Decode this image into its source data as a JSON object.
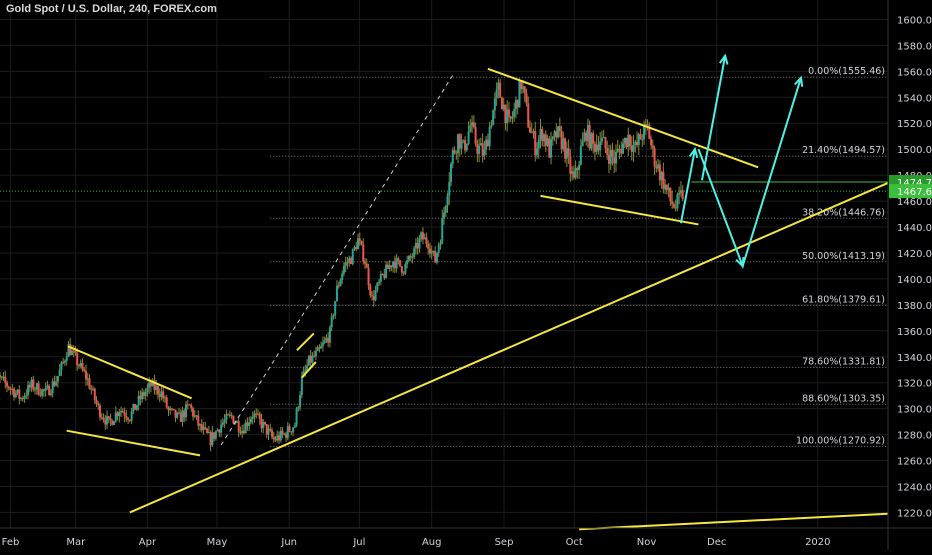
{
  "header": {
    "title": "Gold Spot / U.S. Dollar, 240, FOREX.com"
  },
  "colors": {
    "background": "#000000",
    "grid": "#1c1c1c",
    "candle_up": "#26a69a",
    "candle_down": "#ef5350",
    "wick": "#8a8a3a",
    "pattern_line": "#f5e642",
    "projection": "#4ff0e6",
    "fib_line": "#888888",
    "price_line": "#3cc03c",
    "price_badge": "#3cc03c",
    "price_badge_alt": "#2a9a2a",
    "axis_text": "#d1d4dc"
  },
  "chart_data": {
    "type": "candlestick",
    "symbol": "Gold Spot / U.S. Dollar",
    "interval": "240",
    "ylim": [
      1208,
      1615
    ],
    "y_ticks": [
      1220,
      1240,
      1260,
      1280,
      1300,
      1320,
      1340,
      1360,
      1380,
      1400,
      1420,
      1440,
      1460,
      1480,
      1500,
      1520,
      1540,
      1560,
      1580,
      1600
    ],
    "y_tick_labels": [
      "1220.00",
      "1240.00",
      "1260.00",
      "1280.00",
      "1300.00",
      "1320.00",
      "1340.00",
      "1360.00",
      "1380.00",
      "1400.00",
      "1420.00",
      "1440.00",
      "1460.00",
      "1480.00",
      "1500.00",
      "1520.00",
      "1540.00",
      "1560.00",
      "1580.00",
      "1600.00"
    ],
    "x_ticks": [
      {
        "label": "Feb",
        "t": 0.3
      },
      {
        "label": "Mar",
        "t": 1.23
      },
      {
        "label": "Apr",
        "t": 2.25
      },
      {
        "label": "May",
        "t": 3.24
      },
      {
        "label": "Jun",
        "t": 4.27
      },
      {
        "label": "Jul",
        "t": 5.27
      },
      {
        "label": "Aug",
        "t": 6.3
      },
      {
        "label": "Sep",
        "t": 7.33
      },
      {
        "label": "Oct",
        "t": 8.33
      },
      {
        "label": "Nov",
        "t": 9.36
      },
      {
        "label": "Dec",
        "t": 10.36
      },
      {
        "label": "2020",
        "t": 11.8
      }
    ],
    "xlim": [
      0.15,
      12.8
    ],
    "current_price": {
      "value": 1467.69,
      "label": "1467.69"
    },
    "secondary_price": {
      "value": 1474.75,
      "label": "1474.75"
    },
    "fib_levels": [
      {
        "label": "0.00%(1555.46)",
        "value": 1555.46
      },
      {
        "label": "21.40%(1494.57)",
        "value": 1494.57
      },
      {
        "label": "38.20%(1446.76)",
        "value": 1446.76
      },
      {
        "label": "50.00%(1413.19)",
        "value": 1413.19
      },
      {
        "label": "61.80%(1379.61)",
        "value": 1379.61
      },
      {
        "label": "78.60%(1331.81)",
        "value": 1331.81
      },
      {
        "label": "88.60%(1303.35)",
        "value": 1303.35
      },
      {
        "label": "100.00%(1270.92)",
        "value": 1270.92
      }
    ],
    "price_path": [
      [
        0.0,
        1318
      ],
      [
        0.12,
        1324
      ],
      [
        0.3,
        1316
      ],
      [
        0.45,
        1308
      ],
      [
        0.6,
        1318
      ],
      [
        0.8,
        1312
      ],
      [
        0.95,
        1322
      ],
      [
        1.05,
        1335
      ],
      [
        1.12,
        1348
      ],
      [
        1.25,
        1336
      ],
      [
        1.4,
        1322
      ],
      [
        1.55,
        1300
      ],
      [
        1.7,
        1288
      ],
      [
        1.85,
        1300
      ],
      [
        2.0,
        1294
      ],
      [
        2.15,
        1308
      ],
      [
        2.3,
        1318
      ],
      [
        2.45,
        1312
      ],
      [
        2.55,
        1298
      ],
      [
        2.7,
        1292
      ],
      [
        2.85,
        1302
      ],
      [
        3.0,
        1285
      ],
      [
        3.15,
        1276
      ],
      [
        3.3,
        1288
      ],
      [
        3.45,
        1294
      ],
      [
        3.6,
        1284
      ],
      [
        3.75,
        1296
      ],
      [
        3.88,
        1288
      ],
      [
        4.05,
        1276
      ],
      [
        4.2,
        1280
      ],
      [
        4.35,
        1288
      ],
      [
        4.45,
        1322
      ],
      [
        4.55,
        1336
      ],
      [
        4.7,
        1344
      ],
      [
        4.85,
        1358
      ],
      [
        4.95,
        1392
      ],
      [
        5.05,
        1410
      ],
      [
        5.15,
        1416
      ],
      [
        5.25,
        1430
      ],
      [
        5.35,
        1414
      ],
      [
        5.45,
        1384
      ],
      [
        5.6,
        1402
      ],
      [
        5.75,
        1414
      ],
      [
        5.9,
        1408
      ],
      [
        6.05,
        1420
      ],
      [
        6.15,
        1432
      ],
      [
        6.25,
        1428
      ],
      [
        6.35,
        1414
      ],
      [
        6.45,
        1442
      ],
      [
        6.52,
        1470
      ],
      [
        6.6,
        1496
      ],
      [
        6.68,
        1510
      ],
      [
        6.75,
        1500
      ],
      [
        6.85,
        1518
      ],
      [
        6.95,
        1502
      ],
      [
        7.05,
        1496
      ],
      [
        7.15,
        1524
      ],
      [
        7.25,
        1546
      ],
      [
        7.32,
        1534
      ],
      [
        7.4,
        1518
      ],
      [
        7.48,
        1530
      ],
      [
        7.58,
        1552
      ],
      [
        7.68,
        1520
      ],
      [
        7.78,
        1502
      ],
      [
        7.88,
        1514
      ],
      [
        7.98,
        1498
      ],
      [
        8.08,
        1512
      ],
      [
        8.18,
        1504
      ],
      [
        8.25,
        1488
      ],
      [
        8.33,
        1474
      ],
      [
        8.42,
        1498
      ],
      [
        8.5,
        1514
      ],
      [
        8.6,
        1502
      ],
      [
        8.7,
        1508
      ],
      [
        8.8,
        1498
      ],
      [
        8.9,
        1492
      ],
      [
        9.0,
        1502
      ],
      [
        9.1,
        1510
      ],
      [
        9.2,
        1500
      ],
      [
        9.3,
        1512
      ],
      [
        9.38,
        1516
      ],
      [
        9.45,
        1496
      ],
      [
        9.55,
        1482
      ],
      [
        9.62,
        1472
      ],
      [
        9.7,
        1460
      ],
      [
        9.78,
        1455
      ],
      [
        9.84,
        1462
      ],
      [
        9.9,
        1468
      ]
    ],
    "pattern_lines": [
      {
        "name": "wedge-1-top",
        "p1": [
          1.12,
          1348
        ],
        "p2": [
          2.88,
          1308
        ]
      },
      {
        "name": "wedge-1-bottom",
        "p1": [
          1.1,
          1283
        ],
        "p2": [
          3.0,
          1264
        ]
      },
      {
        "name": "pennant-top",
        "p1": [
          4.38,
          1345
        ],
        "p2": [
          4.62,
          1358
        ]
      },
      {
        "name": "pennant-bottom",
        "p1": [
          4.45,
          1324
        ],
        "p2": [
          4.65,
          1336
        ]
      },
      {
        "name": "flag-top",
        "p1": [
          7.1,
          1562
        ],
        "p2": [
          10.95,
          1486
        ]
      },
      {
        "name": "flag-bottom",
        "p1": [
          7.85,
          1464
        ],
        "p2": [
          10.1,
          1442
        ]
      },
      {
        "name": "main-trendline",
        "p1": [
          2.0,
          1220
        ],
        "p2": [
          12.8,
          1474
        ]
      },
      {
        "name": "lower-trendline",
        "p1": [
          8.4,
          1207
        ],
        "p2": [
          12.8,
          1219
        ]
      }
    ],
    "dashed_channel": {
      "p1": [
        3.3,
        1272
      ],
      "p2": [
        6.6,
        1557
      ]
    },
    "projections": [
      {
        "name": "path-a",
        "points": [
          [
            9.85,
            1443
          ],
          [
            10.05,
            1500
          ]
        ]
      },
      {
        "name": "path-a-up",
        "points": [
          [
            10.15,
            1476
          ],
          [
            10.48,
            1572
          ]
        ]
      },
      {
        "name": "path-b",
        "points": [
          [
            10.1,
            1500
          ],
          [
            10.73,
            1410
          ],
          [
            11.56,
            1555
          ]
        ]
      }
    ]
  }
}
